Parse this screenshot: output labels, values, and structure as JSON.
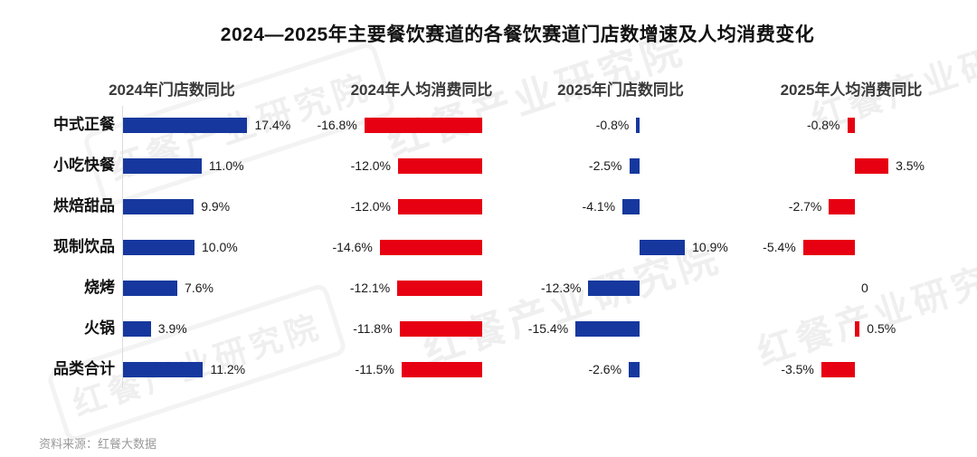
{
  "title": "2024—2025年主要餐饮赛道的各餐饮赛道门店数增速及人均消费变化",
  "source_note": "资料来源：红餐大数据",
  "watermark_text": "红餐产业研究院",
  "colors": {
    "store_blue": "#16389E",
    "consumption_red": "#E60012",
    "axis_gray": "#DCDCDC",
    "label_dark": "#1A1A1A",
    "source_gray": "#9A9A9A"
  },
  "chart_data": {
    "type": "bar",
    "orientation": "horizontal-diverging",
    "title": "2024—2025年主要餐饮赛道的各餐饮赛道门店数增速及人均消费变化",
    "unit": "%",
    "grid": false,
    "legend_position": "none",
    "categories": [
      "中式正餐",
      "小吃快餐",
      "烘焙甜品",
      "现制饮品",
      "烧烤",
      "火锅",
      "品类合计"
    ],
    "series": [
      {
        "name": "2024年门店数同比",
        "color_key": "store_blue",
        "values": [
          17.4,
          11.0,
          9.9,
          10.0,
          7.6,
          3.9,
          11.2
        ],
        "labels": [
          "17.4%",
          "11.0%",
          "9.9%",
          "10.0%",
          "7.6%",
          "3.9%",
          "11.2%"
        ]
      },
      {
        "name": "2024年人均消费同比",
        "color_key": "consumption_red",
        "values": [
          -16.8,
          -12.0,
          -12.0,
          -14.6,
          -12.1,
          -11.8,
          -11.5
        ],
        "labels": [
          "-16.8%",
          "-12.0%",
          "-12.0%",
          "-14.6%",
          "-12.1%",
          "-11.8%",
          "-11.5%"
        ]
      },
      {
        "name": "2025年门店数同比",
        "color_key": "store_blue",
        "values": [
          -0.8,
          -2.5,
          -4.1,
          10.9,
          -12.3,
          -15.4,
          -2.6
        ],
        "labels": [
          "-0.8%",
          "-2.5%",
          "-4.1%",
          "10.9%",
          "-12.3%",
          "-15.4%",
          "-2.6%"
        ]
      },
      {
        "name": "2025年人均消费同比",
        "color_key": "consumption_red",
        "values": [
          -0.8,
          3.5,
          -2.7,
          -5.4,
          0,
          0.5,
          -3.5
        ],
        "labels": [
          "-0.8%",
          "3.5%",
          "-2.7%",
          "-5.4%",
          "0",
          "0.5%",
          "-3.5%"
        ]
      }
    ]
  }
}
